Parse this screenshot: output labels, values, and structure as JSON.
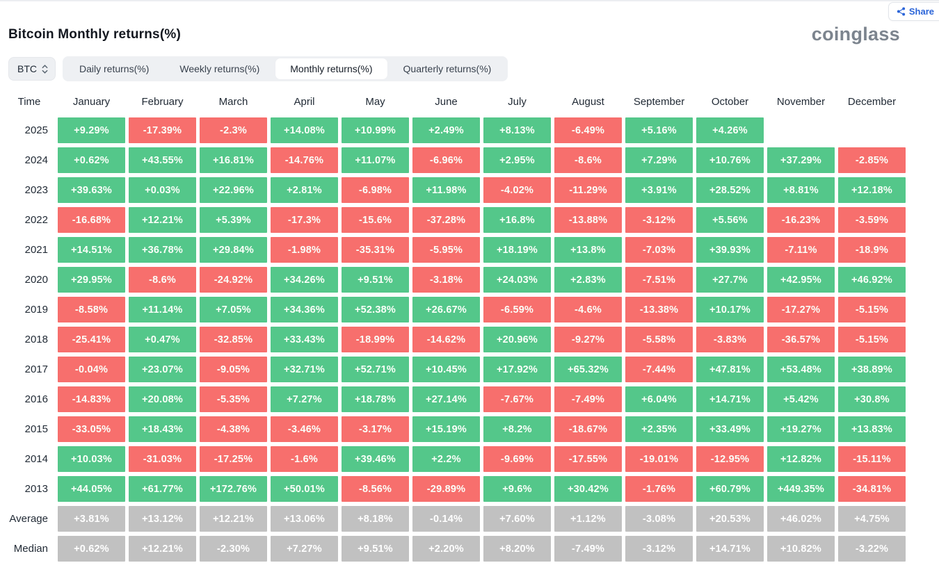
{
  "header": {
    "title": "Bitcoin Monthly returns(%)",
    "logo": "coinglass",
    "share_label": "Share"
  },
  "controls": {
    "coin_selector": "BTC",
    "tabs": [
      {
        "label": "Daily returns(%)",
        "active": false
      },
      {
        "label": "Weekly returns(%)",
        "active": false
      },
      {
        "label": "Monthly returns(%)",
        "active": true
      },
      {
        "label": "Quarterly returns(%)",
        "active": false
      }
    ]
  },
  "colors": {
    "positive": "#54c78a",
    "negative": "#f76f6d",
    "neutral": "#c1c1c1",
    "share_accent": "#2a64d8"
  },
  "chart_data": {
    "type": "heatmap",
    "title": "Bitcoin Monthly returns(%)",
    "columns": [
      "Time",
      "January",
      "February",
      "March",
      "April",
      "May",
      "June",
      "July",
      "August",
      "September",
      "October",
      "November",
      "December"
    ],
    "rows": [
      {
        "label": "2025",
        "neutral": false,
        "values": [
          "+9.29%",
          "-17.39%",
          "-2.3%",
          "+14.08%",
          "+10.99%",
          "+2.49%",
          "+8.13%",
          "-6.49%",
          "+5.16%",
          "+4.26%",
          "",
          ""
        ]
      },
      {
        "label": "2024",
        "neutral": false,
        "values": [
          "+0.62%",
          "+43.55%",
          "+16.81%",
          "-14.76%",
          "+11.07%",
          "-6.96%",
          "+2.95%",
          "-8.6%",
          "+7.29%",
          "+10.76%",
          "+37.29%",
          "-2.85%"
        ]
      },
      {
        "label": "2023",
        "neutral": false,
        "values": [
          "+39.63%",
          "+0.03%",
          "+22.96%",
          "+2.81%",
          "-6.98%",
          "+11.98%",
          "-4.02%",
          "-11.29%",
          "+3.91%",
          "+28.52%",
          "+8.81%",
          "+12.18%"
        ]
      },
      {
        "label": "2022",
        "neutral": false,
        "values": [
          "-16.68%",
          "+12.21%",
          "+5.39%",
          "-17.3%",
          "-15.6%",
          "-37.28%",
          "+16.8%",
          "-13.88%",
          "-3.12%",
          "+5.56%",
          "-16.23%",
          "-3.59%"
        ]
      },
      {
        "label": "2021",
        "neutral": false,
        "values": [
          "+14.51%",
          "+36.78%",
          "+29.84%",
          "-1.98%",
          "-35.31%",
          "-5.95%",
          "+18.19%",
          "+13.8%",
          "-7.03%",
          "+39.93%",
          "-7.11%",
          "-18.9%"
        ]
      },
      {
        "label": "2020",
        "neutral": false,
        "values": [
          "+29.95%",
          "-8.6%",
          "-24.92%",
          "+34.26%",
          "+9.51%",
          "-3.18%",
          "+24.03%",
          "+2.83%",
          "-7.51%",
          "+27.7%",
          "+42.95%",
          "+46.92%"
        ]
      },
      {
        "label": "2019",
        "neutral": false,
        "values": [
          "-8.58%",
          "+11.14%",
          "+7.05%",
          "+34.36%",
          "+52.38%",
          "+26.67%",
          "-6.59%",
          "-4.6%",
          "-13.38%",
          "+10.17%",
          "-17.27%",
          "-5.15%"
        ]
      },
      {
        "label": "2018",
        "neutral": false,
        "values": [
          "-25.41%",
          "+0.47%",
          "-32.85%",
          "+33.43%",
          "-18.99%",
          "-14.62%",
          "+20.96%",
          "-9.27%",
          "-5.58%",
          "-3.83%",
          "-36.57%",
          "-5.15%"
        ]
      },
      {
        "label": "2017",
        "neutral": false,
        "values": [
          "-0.04%",
          "+23.07%",
          "-9.05%",
          "+32.71%",
          "+52.71%",
          "+10.45%",
          "+17.92%",
          "+65.32%",
          "-7.44%",
          "+47.81%",
          "+53.48%",
          "+38.89%"
        ]
      },
      {
        "label": "2016",
        "neutral": false,
        "values": [
          "-14.83%",
          "+20.08%",
          "-5.35%",
          "+7.27%",
          "+18.78%",
          "+27.14%",
          "-7.67%",
          "-7.49%",
          "+6.04%",
          "+14.71%",
          "+5.42%",
          "+30.8%"
        ]
      },
      {
        "label": "2015",
        "neutral": false,
        "values": [
          "-33.05%",
          "+18.43%",
          "-4.38%",
          "-3.46%",
          "-3.17%",
          "+15.19%",
          "+8.2%",
          "-18.67%",
          "+2.35%",
          "+33.49%",
          "+19.27%",
          "+13.83%"
        ]
      },
      {
        "label": "2014",
        "neutral": false,
        "values": [
          "+10.03%",
          "-31.03%",
          "-17.25%",
          "-1.6%",
          "+39.46%",
          "+2.2%",
          "-9.69%",
          "-17.55%",
          "-19.01%",
          "-12.95%",
          "+12.82%",
          "-15.11%"
        ]
      },
      {
        "label": "2013",
        "neutral": false,
        "values": [
          "+44.05%",
          "+61.77%",
          "+172.76%",
          "+50.01%",
          "-8.56%",
          "-29.89%",
          "+9.6%",
          "+30.42%",
          "-1.76%",
          "+60.79%",
          "+449.35%",
          "-34.81%"
        ]
      },
      {
        "label": "Average",
        "neutral": true,
        "values": [
          "+3.81%",
          "+13.12%",
          "+12.21%",
          "+13.06%",
          "+8.18%",
          "-0.14%",
          "+7.60%",
          "+1.12%",
          "-3.08%",
          "+20.53%",
          "+46.02%",
          "+4.75%"
        ]
      },
      {
        "label": "Median",
        "neutral": true,
        "values": [
          "+0.62%",
          "+12.21%",
          "-2.30%",
          "+7.27%",
          "+9.51%",
          "+2.20%",
          "+8.20%",
          "-7.49%",
          "-3.12%",
          "+14.71%",
          "+10.82%",
          "-3.22%"
        ]
      }
    ]
  }
}
